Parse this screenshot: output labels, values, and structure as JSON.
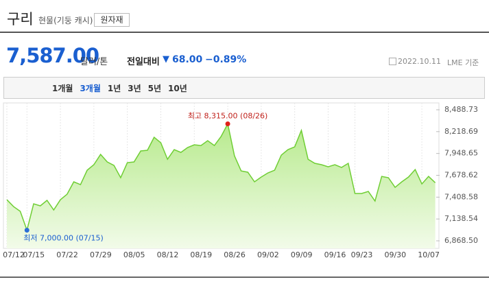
{
  "header": {
    "title": "구리",
    "subtitle": "현물(기둥 캐시)",
    "button": "원자재"
  },
  "price": {
    "value": "7,587.00",
    "unit": "달러/톤",
    "change_label": "전일대비",
    "change": "68.00",
    "change_pct": "−0.89%",
    "date": "2022.10.11",
    "source": "LME 기준"
  },
  "periods": {
    "items": [
      "1개월",
      "3개월",
      "1년",
      "3년",
      "5년",
      "10년"
    ],
    "selected": 1
  },
  "chart_data": {
    "type": "line",
    "color": "#6fce34",
    "grid": true,
    "categories": [
      "07/12",
      null,
      null,
      "07/15",
      null,
      null,
      null,
      null,
      "07/22",
      null,
      null,
      null,
      null,
      "07/29",
      null,
      null,
      null,
      null,
      "08/05",
      null,
      null,
      null,
      null,
      "08/12",
      null,
      null,
      null,
      null,
      "08/19",
      null,
      null,
      null,
      null,
      "08/26",
      null,
      null,
      null,
      null,
      "09/02",
      null,
      null,
      null,
      null,
      "09/09",
      null,
      null,
      null,
      null,
      "09/16",
      null,
      null,
      null,
      "09/23",
      null,
      null,
      null,
      null,
      "09/30",
      null,
      null,
      null,
      null,
      "10/07",
      null,
      null
    ],
    "values": [
      7377,
      7292,
      7233,
      7000,
      7326,
      7301,
      7369,
      7250,
      7377,
      7445,
      7598,
      7564,
      7742,
      7810,
      7937,
      7844,
      7801,
      7649,
      7835,
      7844,
      7980,
      7988,
      8149,
      8081,
      7877,
      7996,
      7962,
      8022,
      8056,
      8047,
      8107,
      8047,
      8158,
      8315,
      7920,
      7733,
      7717,
      7598,
      7657,
      7708,
      7742,
      7928,
      7996,
      8030,
      8234,
      7877,
      7827,
      7810,
      7784,
      7810,
      7776,
      7827,
      7454,
      7454,
      7479,
      7360,
      7665,
      7649,
      7530,
      7598,
      7657,
      7750,
      7572,
      7665,
      7587
    ],
    "ylim": [
      6868.5,
      8488.73
    ],
    "yticks": [
      {
        "value": 8488.73,
        "label": "8,488.73"
      },
      {
        "value": 8218.69,
        "label": "8,218.69"
      },
      {
        "value": 7948.65,
        "label": "7,948.65"
      },
      {
        "value": 7678.62,
        "label": "7,678.62"
      },
      {
        "value": 7408.58,
        "label": "7,408.58"
      },
      {
        "value": 7138.54,
        "label": "7,138.54"
      },
      {
        "value": 6868.5,
        "label": "6,868.50"
      }
    ],
    "max_label": "최고 8,315.00 (08/26)",
    "min_label": "최저 7,000.00 (07/15)"
  }
}
